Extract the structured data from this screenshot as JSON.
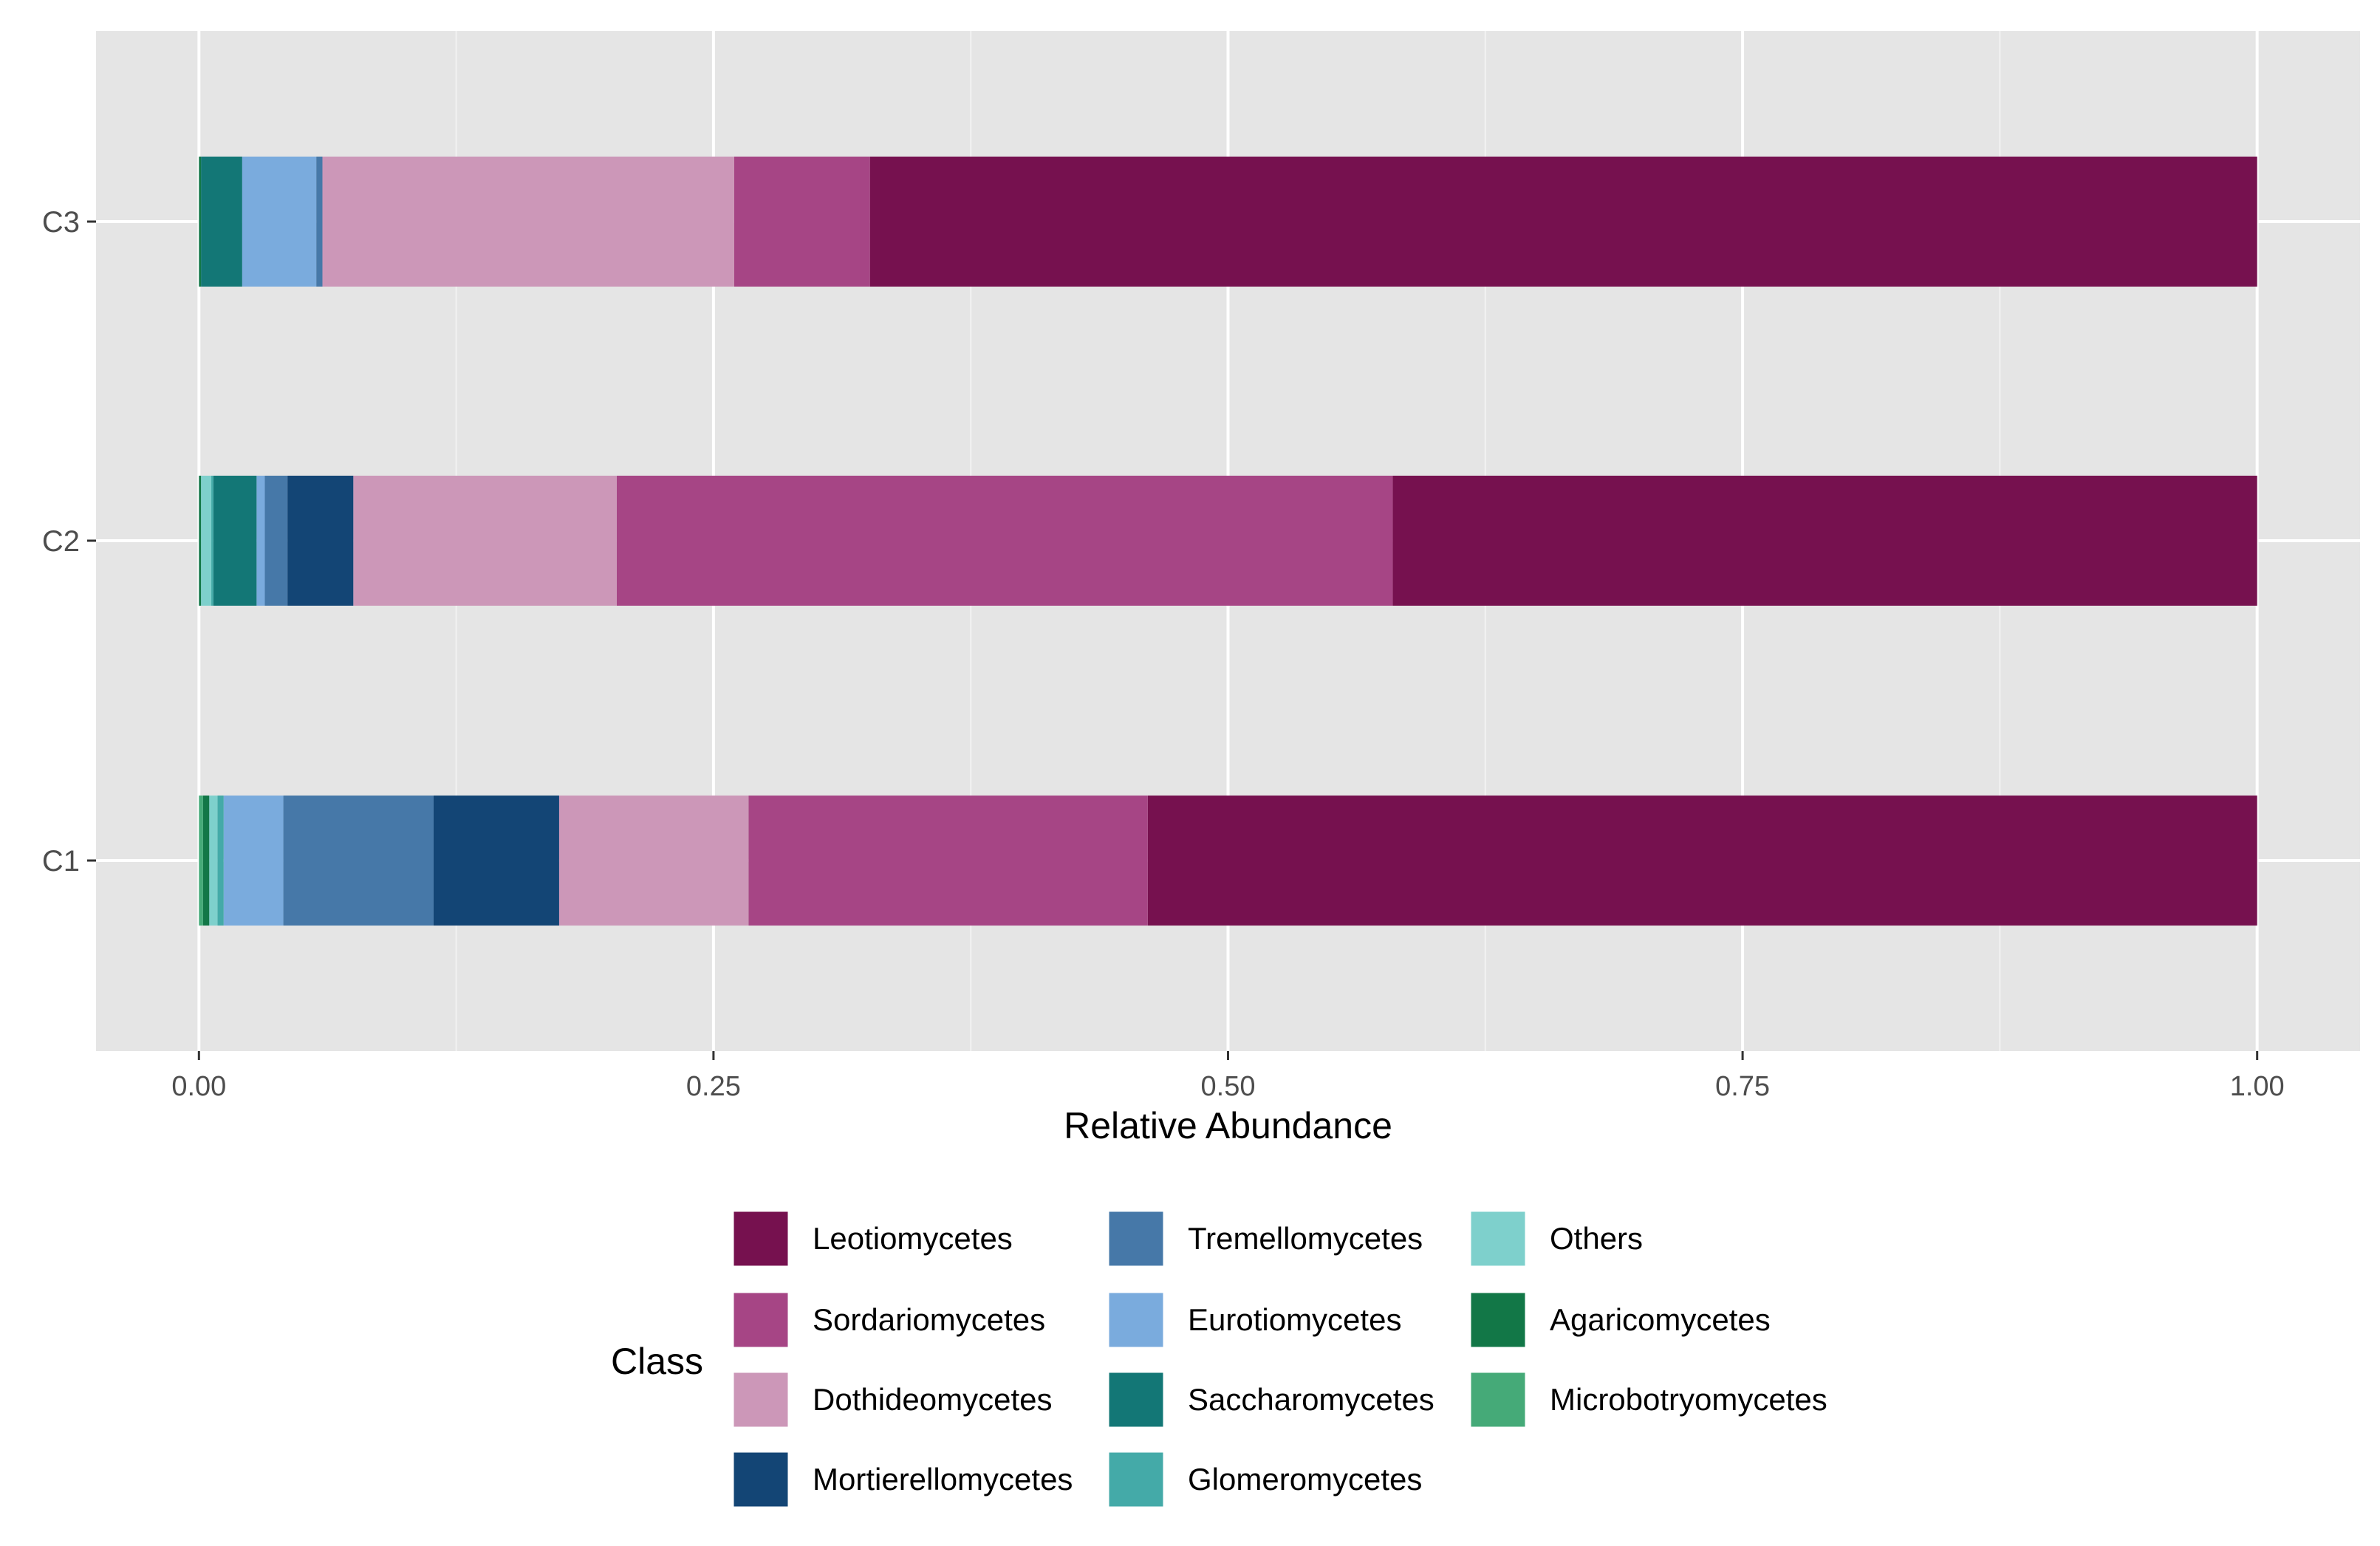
{
  "chart_data": {
    "type": "bar",
    "orientation": "horizontal",
    "stacked": true,
    "xlabel": "Relative Abundance",
    "ylabel": "",
    "xlim": [
      -0.05,
      1.05
    ],
    "xticks": [
      0.0,
      0.25,
      0.5,
      0.75,
      1.0
    ],
    "xtick_labels": [
      "0.00",
      "0.25",
      "0.50",
      "0.75",
      "1.00"
    ],
    "grid": true,
    "categories": [
      "C1",
      "C2",
      "C3"
    ],
    "legend_title": "Class",
    "legend_position": "bottom",
    "series": [
      {
        "name": "Leotiomycetes",
        "color": "#76114f",
        "values": [
          0.539,
          0.42,
          0.674
        ]
      },
      {
        "name": "Sordariomycetes",
        "color": "#a64585",
        "values": [
          0.194,
          0.377,
          0.066
        ]
      },
      {
        "name": "Dothideomycetes",
        "color": "#cc97b8",
        "values": [
          0.092,
          0.128,
          0.2
        ]
      },
      {
        "name": "Mortierellomycetes",
        "color": "#134575",
        "values": [
          0.061,
          0.032,
          0.0
        ]
      },
      {
        "name": "Tremellomycetes",
        "color": "#4678a8",
        "values": [
          0.073,
          0.011,
          0.003
        ]
      },
      {
        "name": "Eurotiomycetes",
        "color": "#7aabdd",
        "values": [
          0.029,
          0.004,
          0.036
        ]
      },
      {
        "name": "Saccharomycetes",
        "color": "#137776",
        "values": [
          0.0,
          0.021,
          0.02
        ]
      },
      {
        "name": "Glomeromycetes",
        "color": "#44aaa8",
        "values": [
          0.003,
          0.001,
          0.0
        ]
      },
      {
        "name": "Others",
        "color": "#7ed0cc",
        "values": [
          0.004,
          0.005,
          0.0
        ]
      },
      {
        "name": "Agaricomycetes",
        "color": "#127747",
        "values": [
          0.003,
          0.001,
          0.001
        ]
      },
      {
        "name": "Microbotryomycetes",
        "color": "#45aa78",
        "values": [
          0.002,
          0.0,
          0.0
        ]
      }
    ]
  }
}
